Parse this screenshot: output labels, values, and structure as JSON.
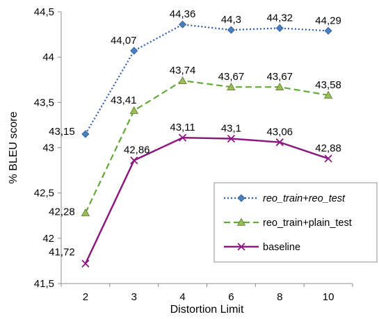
{
  "chart_data": {
    "type": "line",
    "title": "",
    "xlabel": "Distortion Limit",
    "ylabel": "% BLEU score",
    "categories": [
      "2",
      "3",
      "4",
      "6",
      "8",
      "10"
    ],
    "ylim": [
      41.5,
      44.5
    ],
    "yticks": [
      "41,5",
      "42",
      "42,5",
      "43",
      "43,5",
      "44",
      "44,5"
    ],
    "grid": false,
    "legend_position": "bottom-right",
    "series": [
      {
        "name": "reo_train+reo_test",
        "values": [
          43.15,
          44.07,
          44.36,
          44.3,
          44.32,
          44.29
        ],
        "labels": [
          "43,15",
          "44,07",
          "44,36",
          "44,3",
          "44,32",
          "44,29"
        ],
        "color": "#2a5aa8",
        "marker": "diamond",
        "marker_color": "#4a7ebd",
        "line_style": "dotted",
        "legend_italic": true
      },
      {
        "name": "reo_train+plain_test",
        "values": [
          42.28,
          43.41,
          43.74,
          43.67,
          43.67,
          43.58
        ],
        "labels": [
          "42,28",
          "43,41",
          "43,74",
          "43,67",
          "43,67",
          "43,58"
        ],
        "color": "#63a83a",
        "marker": "triangle",
        "marker_color": "#9bbb59",
        "line_style": "dashed",
        "legend_italic": false
      },
      {
        "name": "baseline",
        "values": [
          41.72,
          42.86,
          43.11,
          43.1,
          43.06,
          42.88
        ],
        "labels": [
          "41,72",
          "42,86",
          "43,11",
          "43,1",
          "43,06",
          "42,88"
        ],
        "color": "#8b1a7f",
        "marker": "x",
        "marker_color": "#8b1a7f",
        "line_style": "solid",
        "legend_italic": false
      }
    ]
  }
}
